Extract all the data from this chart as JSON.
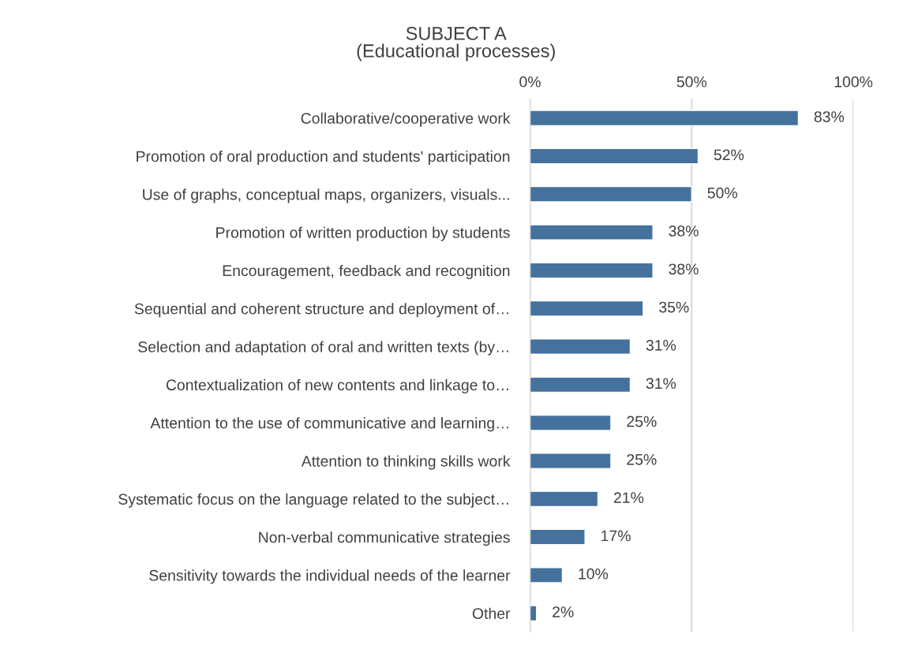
{
  "chart_data": {
    "type": "bar",
    "orientation": "horizontal",
    "title": "SUBJECT A\n(Educational processes)",
    "categories": [
      "Collaborative/cooperative work",
      "Promotion of oral production and students' participation",
      "Use of graphs, conceptual maps, organizers, visuals...",
      "Promotion of written production by students",
      "Encouragement, feedback and recognition",
      "Sequential and coherent structure and deployment of…",
      "Selection and adaptation of oral and written texts (by…",
      "Contextualization of new contents and linkage to…",
      "Attention to the use of communicative and learning…",
      "Attention to thinking skills work",
      "Systematic focus on the language related to the subject…",
      "Non-verbal communicative strategies",
      "Sensitivity towards the individual needs of the learner",
      "Other"
    ],
    "values": [
      83,
      52,
      50,
      38,
      38,
      35,
      31,
      31,
      25,
      25,
      21,
      17,
      10,
      2
    ],
    "value_labels": [
      "83%",
      "52%",
      "50%",
      "38%",
      "38%",
      "35%",
      "31%",
      "31%",
      "25%",
      "25%",
      "21%",
      "17%",
      "10%",
      "2%"
    ],
    "color": "#44729d",
    "xlim": [
      0,
      100
    ],
    "xticks": [
      {
        "value": 0,
        "label": "0%"
      },
      {
        "value": 50,
        "label": "50%"
      },
      {
        "value": 100,
        "label": "100%"
      }
    ],
    "grid": "x"
  }
}
